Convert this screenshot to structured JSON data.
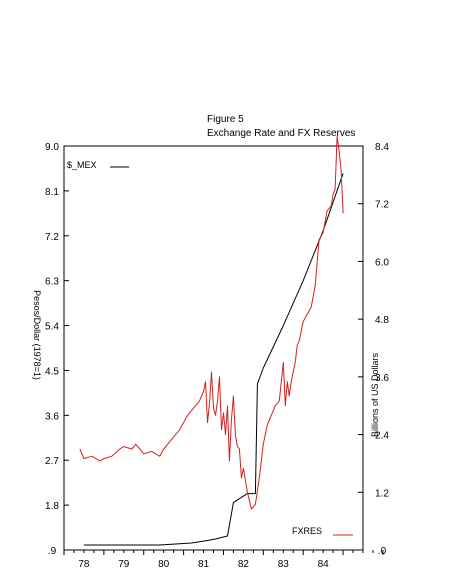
{
  "chart_data": {
    "type": "line",
    "title": "Figure 5",
    "subtitle": "Exchange Rate and FX Reserves",
    "xlabel": "",
    "ylabel_left": "Pesos/Dollar (1978=1)",
    "ylabel_right": "Billions of US Dollars",
    "x_tick_labels": [
      "78",
      "79",
      "80",
      "81",
      "82",
      "83",
      "84"
    ],
    "x_range": [
      1977.5,
      1985.0
    ],
    "y_left_ticks": [
      ".9",
      "1.8",
      "2.7",
      "3.6",
      "4.5",
      "5.4",
      "6.3",
      "7.2",
      "8.1",
      "9.0"
    ],
    "y_left_range": [
      0.9,
      9.0
    ],
    "y_right_ticks": [
      ".0",
      "1.2",
      "2.4",
      "3.6",
      "4.8",
      "6.0",
      "7.2",
      "8.4"
    ],
    "y_right_range": [
      0.0,
      8.4
    ],
    "grid": false,
    "series": [
      {
        "name": "$_MEX",
        "axis": "left",
        "color": "#000000",
        "legend_position": "top-left",
        "x": [
          1978.0,
          1978.5,
          1979.0,
          1979.5,
          1979.9,
          1980.3,
          1980.7,
          1981.1,
          1981.3,
          1981.6,
          1981.75,
          1982.1,
          1982.2,
          1982.3,
          1982.35,
          1982.5,
          1983.0,
          1983.5,
          1984.0,
          1984.5
        ],
        "values": [
          1.0,
          1.0,
          1.0,
          1.0,
          1.0,
          1.02,
          1.04,
          1.09,
          1.12,
          1.18,
          1.85,
          2.03,
          2.03,
          2.03,
          4.23,
          4.55,
          5.4,
          6.3,
          7.3,
          8.45
        ]
      },
      {
        "name": "FXRES",
        "axis": "right",
        "color": "#d42020",
        "legend_position": "bottom-right",
        "x": [
          1977.9,
          1978.0,
          1978.2,
          1978.4,
          1978.5,
          1978.7,
          1978.9,
          1979.0,
          1979.2,
          1979.3,
          1979.5,
          1979.7,
          1979.9,
          1980.0,
          1980.2,
          1980.4,
          1980.6,
          1980.8,
          1980.9,
          1981.0,
          1981.05,
          1981.1,
          1981.15,
          1981.2,
          1981.25,
          1981.3,
          1981.35,
          1981.4,
          1981.45,
          1981.5,
          1981.55,
          1981.6,
          1981.65,
          1981.7,
          1981.75,
          1981.8,
          1981.85,
          1981.9,
          1981.95,
          1982.0,
          1982.1,
          1982.2,
          1982.3,
          1982.4,
          1982.5,
          1982.6,
          1982.7,
          1982.8,
          1982.9,
          1983.0,
          1983.05,
          1983.1,
          1983.15,
          1983.2,
          1983.3,
          1983.35,
          1983.4,
          1983.5,
          1983.6,
          1983.7,
          1983.8,
          1983.9,
          1984.0,
          1984.1,
          1984.2,
          1984.25,
          1984.3,
          1984.35,
          1984.4,
          1984.45,
          1984.5
        ],
        "values": [
          2.1,
          1.9,
          1.95,
          1.85,
          1.9,
          1.95,
          2.1,
          2.15,
          2.1,
          2.2,
          2.0,
          2.05,
          1.95,
          2.1,
          2.3,
          2.5,
          2.8,
          3.0,
          3.1,
          3.3,
          3.5,
          2.65,
          3.05,
          3.7,
          2.95,
          2.8,
          3.1,
          3.6,
          2.5,
          2.85,
          2.4,
          3.0,
          1.85,
          2.7,
          3.2,
          2.4,
          2.15,
          2.1,
          1.5,
          1.7,
          1.2,
          0.85,
          0.95,
          1.5,
          2.2,
          2.6,
          2.8,
          3.0,
          3.1,
          3.9,
          3.0,
          3.5,
          3.2,
          3.5,
          3.9,
          4.25,
          4.35,
          4.75,
          4.9,
          5.05,
          5.5,
          6.45,
          6.6,
          7.05,
          7.15,
          7.4,
          7.5,
          8.6,
          8.3,
          7.9,
          7.0
        ]
      }
    ]
  }
}
